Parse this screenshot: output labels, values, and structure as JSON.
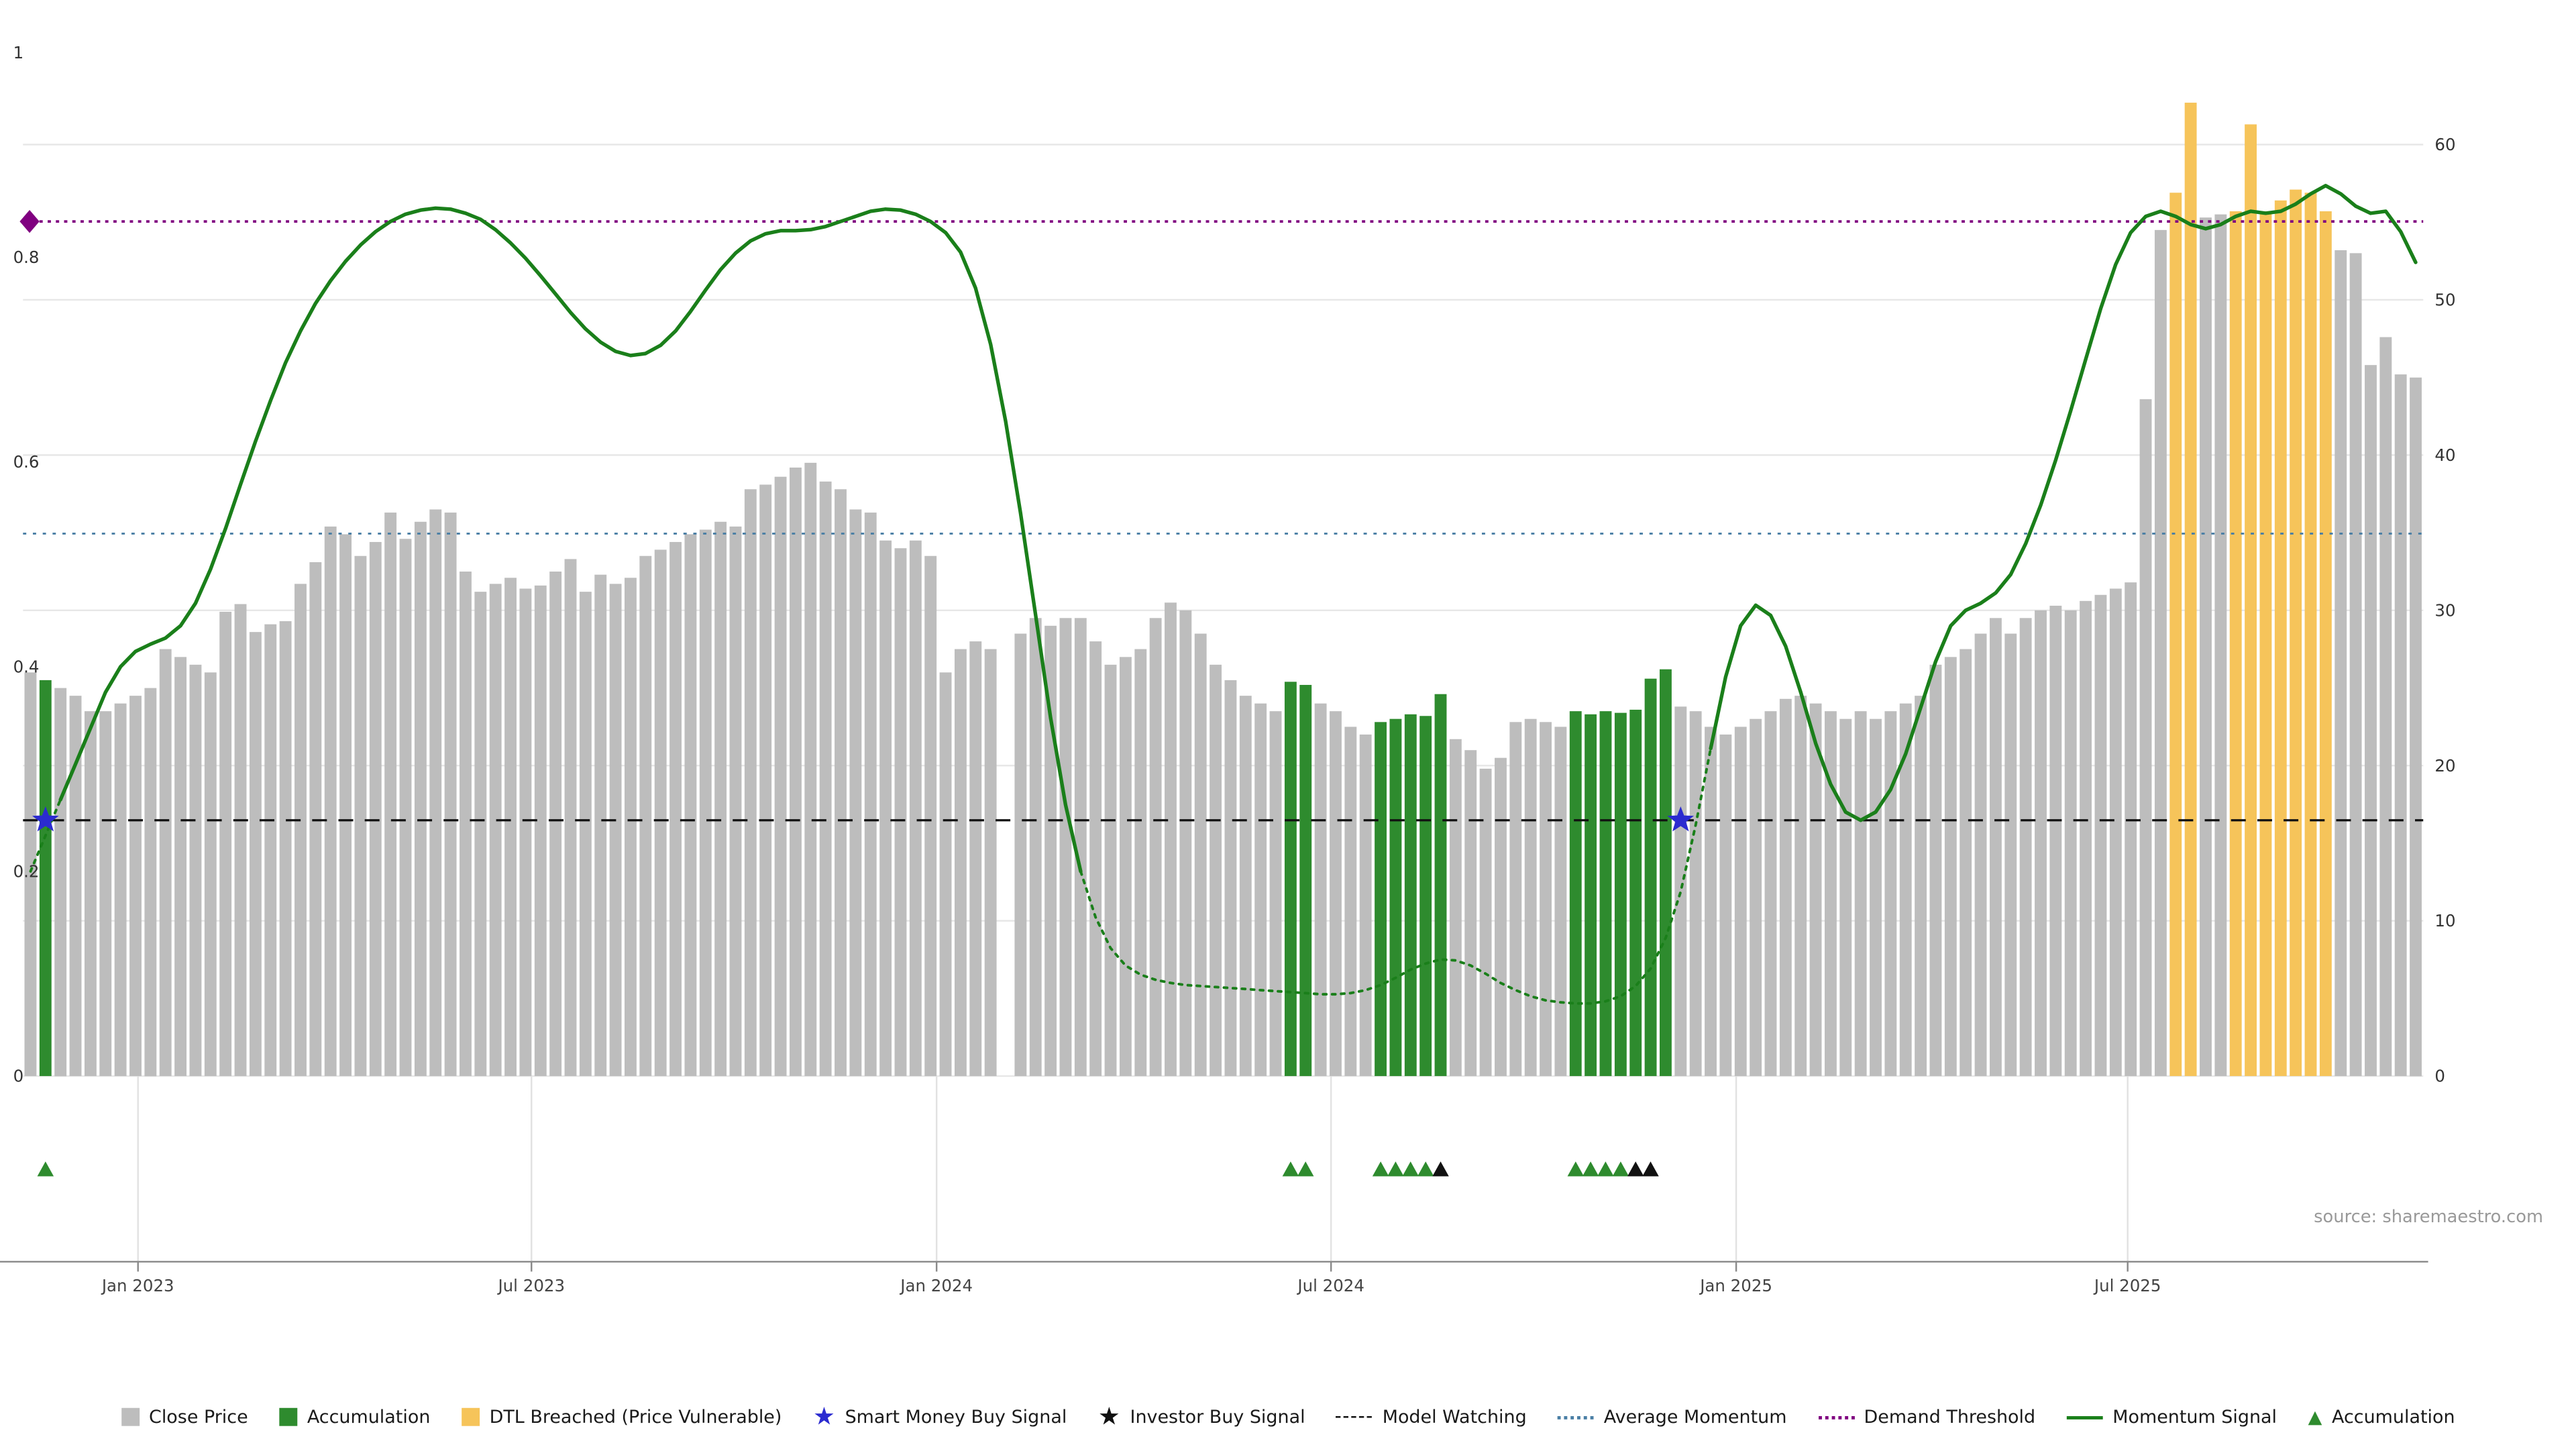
{
  "source": "source: sharemaestro.com",
  "chart_data": {
    "type": "bar",
    "title": "",
    "x_axis": {
      "ticks": [
        {
          "label": "Jan 2023",
          "index": 7.67
        },
        {
          "label": "Jul 2023",
          "index": 33.9
        },
        {
          "label": "Jan 2024",
          "index": 60.9
        },
        {
          "label": "Jul 2024",
          "index": 87.2
        },
        {
          "label": "Jan 2025",
          "index": 114.2
        },
        {
          "label": "Jul 2025",
          "index": 140.3
        }
      ]
    },
    "left_axis": {
      "ticks": [
        0,
        0.2,
        0.4,
        0.6,
        0.8,
        1
      ],
      "range": [
        0,
        1
      ]
    },
    "right_axis": {
      "ticks": [
        0,
        10,
        20,
        30,
        40,
        50,
        60
      ],
      "range": [
        0,
        60
      ]
    },
    "bars": {
      "name": "Close Price",
      "axis": "right",
      "values": [
        26,
        25.5,
        25,
        24.5,
        23.5,
        23.5,
        24,
        24.5,
        25,
        27.5,
        27,
        26.5,
        26,
        29.9,
        30.4,
        28.6,
        29.1,
        29.3,
        31.7,
        33.1,
        35.4,
        34.9,
        33.5,
        34.4,
        36.3,
        34.6,
        35.7,
        36.5,
        36.3,
        32.5,
        31.2,
        31.7,
        32.1,
        31.4,
        31.6,
        32.5,
        33.3,
        31.2,
        32.3,
        31.7,
        32.1,
        33.5,
        33.9,
        34.4,
        34.9,
        35.2,
        35.7,
        35.4,
        37.8,
        38.1,
        38.6,
        39.2,
        39.5,
        38.3,
        37.8,
        36.5,
        36.3,
        34.5,
        34,
        34.5,
        33.5,
        26,
        27.5,
        28,
        27.5,
        0,
        28.5,
        29.5,
        29,
        29.5,
        29.5,
        28,
        26.5,
        27,
        27.5,
        29.5,
        30.5,
        30,
        28.5,
        26.5,
        25.5,
        24.5,
        24,
        23.5,
        25.4,
        25.2,
        24,
        23.5,
        22.5,
        22,
        22.8,
        23,
        23.3,
        23.2,
        24.6,
        21.7,
        21,
        19.8,
        20.5,
        22.8,
        23,
        22.8,
        22.5,
        23.5,
        23.3,
        23.5,
        23.4,
        23.6,
        25.6,
        26.2,
        23.8,
        23.5,
        22.5,
        22,
        22.5,
        23,
        23.5,
        24.3,
        24.5,
        24,
        23.5,
        23,
        23.5,
        23,
        23.5,
        24,
        24.5,
        26.5,
        27,
        27.5,
        28.5,
        29.5,
        28.5,
        29.5,
        30,
        30.3,
        30,
        30.6,
        31,
        31.4,
        31.8,
        43.6,
        54.5,
        56.9,
        62.7,
        55.3,
        55.5,
        55.7,
        61.3,
        55.7,
        56.4,
        57.1,
        56.9,
        55.7,
        53.2,
        53,
        45.8,
        47.6,
        45.2,
        45
      ],
      "accumulation_indices": [
        1,
        84,
        85,
        90,
        91,
        92,
        93,
        94,
        103,
        104,
        105,
        106,
        107,
        108,
        109
      ],
      "dtl_breached_indices": [
        143,
        144,
        147,
        148,
        149,
        150,
        151,
        152,
        153
      ]
    },
    "momentum": {
      "name": "Momentum Signal",
      "axis": "left",
      "values": [
        0.2,
        0.235,
        0.27,
        0.305,
        0.34,
        0.375,
        0.4,
        0.415,
        0.422,
        0.428,
        0.44,
        0.462,
        0.495,
        0.535,
        0.578,
        0.62,
        0.66,
        0.697,
        0.728,
        0.755,
        0.777,
        0.796,
        0.812,
        0.825,
        0.835,
        0.842,
        0.846,
        0.848,
        0.847,
        0.843,
        0.837,
        0.827,
        0.814,
        0.799,
        0.782,
        0.764,
        0.746,
        0.73,
        0.717,
        0.708,
        0.704,
        0.706,
        0.714,
        0.728,
        0.747,
        0.768,
        0.788,
        0.804,
        0.816,
        0.823,
        0.826,
        0.826,
        0.827,
        0.83,
        0.835,
        0.84,
        0.845,
        0.847,
        0.846,
        0.842,
        0.835,
        0.824,
        0.805,
        0.77,
        0.715,
        0.64,
        0.55,
        0.45,
        0.35,
        0.265,
        0.2,
        0.155,
        0.125,
        0.108,
        0.099,
        0.094,
        0.091,
        0.089,
        0.088,
        0.087,
        0.086,
        0.085,
        0.084,
        0.083,
        0.082,
        0.081,
        0.08,
        0.08,
        0.081,
        0.084,
        0.089,
        0.096,
        0.104,
        0.11,
        0.114,
        0.113,
        0.108,
        0.1,
        0.091,
        0.084,
        0.078,
        0.074,
        0.072,
        0.071,
        0.071,
        0.073,
        0.078,
        0.088,
        0.105,
        0.135,
        0.18,
        0.245,
        0.32,
        0.39,
        0.44,
        0.46,
        0.45,
        0.42,
        0.375,
        0.325,
        0.285,
        0.258,
        0.25,
        0.258,
        0.28,
        0.315,
        0.36,
        0.405,
        0.44,
        0.455,
        0.462,
        0.472,
        0.49,
        0.52,
        0.558,
        0.602,
        0.65,
        0.7,
        0.75,
        0.793,
        0.824,
        0.84,
        0.845,
        0.84,
        0.832,
        0.828,
        0.832,
        0.84,
        0.845,
        0.843,
        0.845,
        0.852,
        0.862,
        0.87,
        0.862,
        0.85,
        0.843,
        0.845,
        0.825,
        0.795
      ]
    },
    "reference_lines": {
      "demand_threshold": 0.835,
      "average_momentum": 0.53,
      "model_watching": 0.25
    },
    "markers": {
      "smart_money_buy": [
        {
          "index": 1,
          "value": 0.25
        },
        {
          "index": 110,
          "value": 0.25
        }
      ],
      "demand_diamond": {
        "index": 0,
        "value": 0.835
      },
      "accumulation_triangles": [
        1,
        84,
        85,
        90,
        91,
        92,
        93,
        103,
        104,
        105,
        106
      ],
      "investor_triangles": [
        94,
        107,
        108
      ]
    },
    "colors": {
      "close_price": "#bdbdbd",
      "accumulation": "#2e8b2e",
      "dtl_breached": "#f6c45a",
      "momentum": "#1a7f1a",
      "smart_money": "#2b2bd0",
      "investor": "#111111",
      "demand_threshold": "#800080",
      "average_momentum": "#4a7fa5",
      "model_watching": "#111111",
      "grid": "#e7e7e7",
      "axis_text": "#333333"
    }
  },
  "legend": {
    "items": [
      {
        "id": "close-price",
        "swatch": "square",
        "color": "#bdbdbd",
        "label": "Close Price"
      },
      {
        "id": "accumulation",
        "swatch": "square",
        "color": "#2e8b2e",
        "label": "Accumulation"
      },
      {
        "id": "dtl-breached",
        "swatch": "square",
        "color": "#f6c45a",
        "label": "DTL Breached (Price Vulnerable)"
      },
      {
        "id": "smart-money-buy",
        "swatch": "star",
        "color": "#2b2bd0",
        "label": "Smart Money Buy Signal"
      },
      {
        "id": "investor-buy",
        "swatch": "star",
        "color": "#111111",
        "label": "Investor Buy Signal"
      },
      {
        "id": "model-watching",
        "swatch": "dashed-line",
        "color": "#111111",
        "label": "Model Watching"
      },
      {
        "id": "average-momentum",
        "swatch": "dotted-line",
        "color": "#4a7fa5",
        "label": "Average Momentum"
      },
      {
        "id": "demand-threshold",
        "swatch": "dotted-line",
        "color": "#800080",
        "label": "Demand Threshold"
      },
      {
        "id": "momentum-signal",
        "swatch": "solid-line",
        "color": "#1a7f1a",
        "label": "Momentum Signal"
      },
      {
        "id": "accumulation-tri",
        "swatch": "triangle",
        "color": "#2e8b2e",
        "label": "Accumulation"
      }
    ]
  }
}
